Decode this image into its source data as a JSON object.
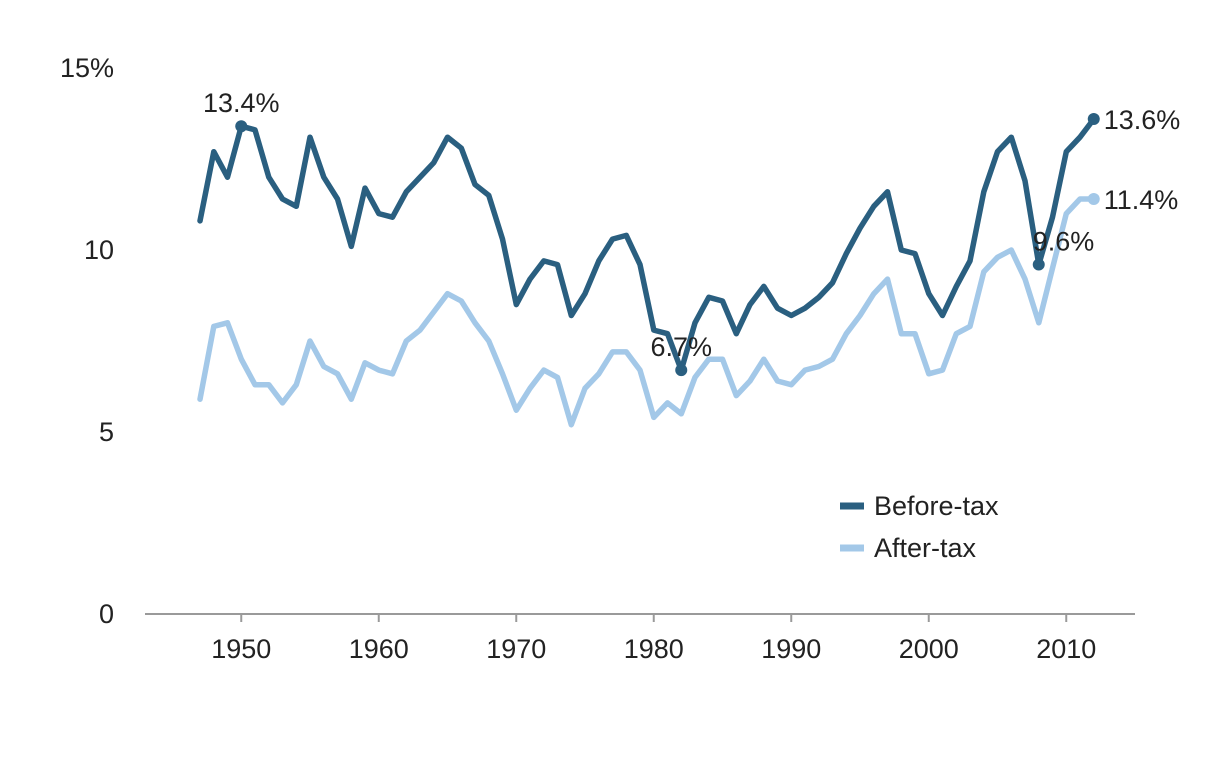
{
  "chart_data": {
    "type": "line",
    "title": "",
    "xlabel": "",
    "ylabel": "",
    "xlim": [
      1943,
      2015
    ],
    "ylim": [
      0,
      15
    ],
    "x_ticks": [
      1950,
      1960,
      1970,
      1980,
      1990,
      2000,
      2010
    ],
    "y_ticks": [
      0,
      5,
      10,
      15
    ],
    "y_tick_labels": [
      "0",
      "5",
      "10",
      "15%"
    ],
    "legend_position": "lower-right",
    "grid": false,
    "x": [
      1947,
      1948,
      1949,
      1950,
      1951,
      1952,
      1953,
      1954,
      1955,
      1956,
      1957,
      1958,
      1959,
      1960,
      1961,
      1962,
      1963,
      1964,
      1965,
      1966,
      1967,
      1968,
      1969,
      1970,
      1971,
      1972,
      1973,
      1974,
      1975,
      1976,
      1977,
      1978,
      1979,
      1980,
      1981,
      1982,
      1983,
      1984,
      1985,
      1986,
      1987,
      1988,
      1989,
      1990,
      1991,
      1992,
      1993,
      1994,
      1995,
      1996,
      1997,
      1998,
      1999,
      2000,
      2001,
      2002,
      2003,
      2004,
      2005,
      2006,
      2007,
      2008,
      2009,
      2010,
      2011,
      2012
    ],
    "series": [
      {
        "name": "Before-tax",
        "color": "#2a5f80",
        "values": [
          10.8,
          12.7,
          12.0,
          13.4,
          13.3,
          12.0,
          11.4,
          11.2,
          13.1,
          12.0,
          11.4,
          10.1,
          11.7,
          11.0,
          10.9,
          11.6,
          12.0,
          12.4,
          13.1,
          12.8,
          11.8,
          11.5,
          10.3,
          8.5,
          9.2,
          9.7,
          9.6,
          8.2,
          8.8,
          9.7,
          10.3,
          10.4,
          9.6,
          7.8,
          7.7,
          6.7,
          8.0,
          8.7,
          8.6,
          7.7,
          8.5,
          9.0,
          8.4,
          8.2,
          8.4,
          8.7,
          9.1,
          9.9,
          10.6,
          11.2,
          11.6,
          10.0,
          9.9,
          8.8,
          8.2,
          9.0,
          9.7,
          11.6,
          12.7,
          13.1,
          11.9,
          9.6,
          10.9,
          12.7,
          13.1,
          13.6
        ]
      },
      {
        "name": "After-tax",
        "color": "#a3c8e8",
        "values": [
          5.9,
          7.9,
          8.0,
          7.0,
          6.3,
          6.3,
          5.8,
          6.3,
          7.5,
          6.8,
          6.6,
          5.9,
          6.9,
          6.7,
          6.6,
          7.5,
          7.8,
          8.3,
          8.8,
          8.6,
          8.0,
          7.5,
          6.6,
          5.6,
          6.2,
          6.7,
          6.5,
          5.2,
          6.2,
          6.6,
          7.2,
          7.2,
          6.7,
          5.4,
          5.8,
          5.5,
          6.5,
          7.0,
          7.0,
          6.0,
          6.4,
          7.0,
          6.4,
          6.3,
          6.7,
          6.8,
          7.0,
          7.7,
          8.2,
          8.8,
          9.2,
          7.7,
          7.7,
          6.6,
          6.7,
          7.7,
          7.9,
          9.4,
          9.8,
          10.0,
          9.2,
          8.0,
          9.5,
          11.0,
          11.4,
          11.4
        ]
      }
    ],
    "annotations": [
      {
        "series": 0,
        "x": 1950,
        "y": 13.4,
        "text": "13.4%",
        "anchor": "above"
      },
      {
        "series": 0,
        "x": 1982,
        "y": 6.7,
        "text": "6.7%",
        "anchor": "above"
      },
      {
        "series": 0,
        "x": 2008,
        "y": 9.6,
        "text": "9.6%",
        "anchor": "above-right"
      },
      {
        "series": 0,
        "x": 2012,
        "y": 13.6,
        "text": "13.6%",
        "anchor": "right"
      },
      {
        "series": 1,
        "x": 2012,
        "y": 11.4,
        "text": "11.4%",
        "anchor": "right"
      }
    ]
  }
}
